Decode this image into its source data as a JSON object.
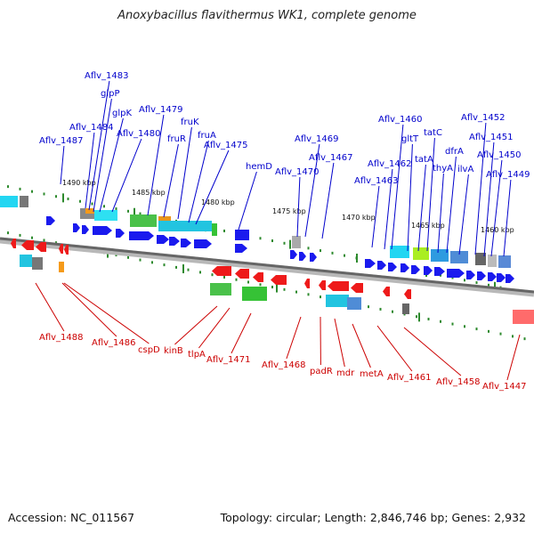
{
  "title": "Anoxybacillus flavithermus WK1, complete genome",
  "footer": {
    "accession": "Accession: NC_011567",
    "summary": "Topology: circular; Length: 2,846,746 bp; Genes: 2,932"
  },
  "colors": {
    "forward_label": "#0000cc",
    "reverse_label": "#cc0000",
    "forward_gene": "#1a1aee",
    "reverse_gene": "#ee1a1a",
    "tick": "#2d8a2d",
    "backbone": "#8a8a8a"
  },
  "scale_labels": [
    "1490 kbp",
    "1485 kbp",
    "1480 kbp",
    "1475 kbp",
    "1470 kbp",
    "1465 kbp",
    "1460 kbp"
  ],
  "forward_labels": [
    "Aflv_1487",
    "Aflv_1484",
    "Aflv_1483",
    "glpP",
    "glpK",
    "Aflv_1480",
    "Aflv_1479",
    "fruR",
    "fruK",
    "fruA",
    "Aflv_1475",
    "hemD",
    "Aflv_1470",
    "Aflv_1469",
    "Aflv_1467",
    "Aflv_1463",
    "Aflv_1462",
    "Aflv_1460",
    "gltT",
    "tatA",
    "tatC",
    "thyA",
    "dfrA",
    "ilvA",
    "Aflv_1452",
    "Aflv_1451",
    "Aflv_1450",
    "Aflv_1449"
  ],
  "reverse_labels": [
    "Aflv_1488",
    "Aflv_1486",
    "cspD",
    "kinB",
    "tlpA",
    "Aflv_1471",
    "Aflv_1468",
    "padR",
    "mdr",
    "metA",
    "Aflv_1461",
    "Aflv_1458",
    "Aflv_1447"
  ]
}
